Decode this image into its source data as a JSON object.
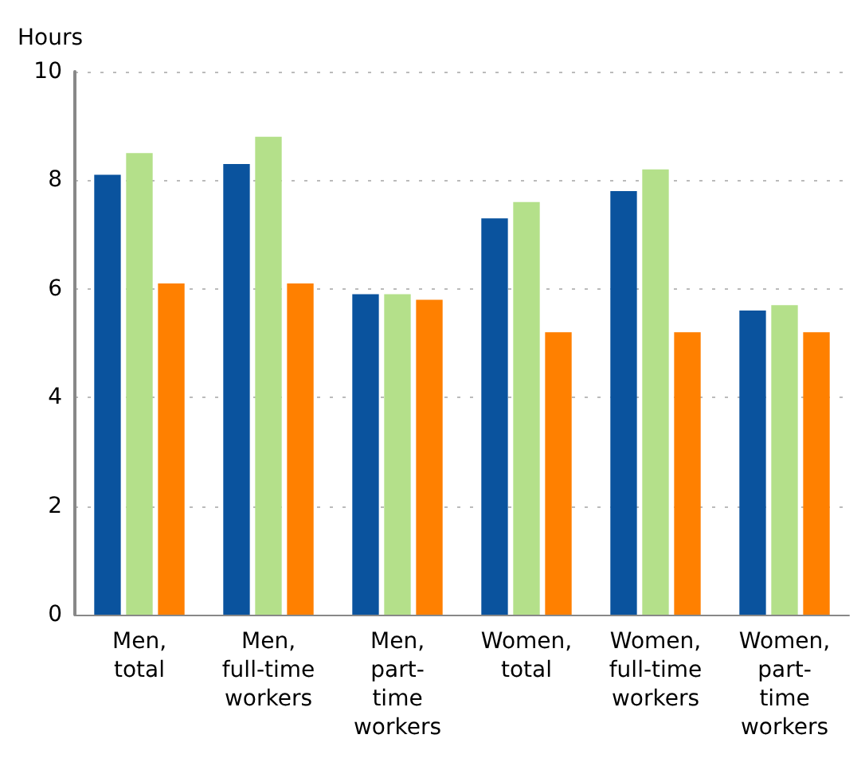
{
  "chart_data": {
    "type": "bar",
    "ylabel": "Hours",
    "categories": [
      "Men,\ntotal",
      "Men,\nfull-time\nworkers",
      "Men,\npart-\ntime\nworkers",
      "Women,\ntotal",
      "Women,\nfull-time\nworkers",
      "Women,\npart-\ntime\nworkers"
    ],
    "series": [
      {
        "color": "#0a539e",
        "values": [
          8.1,
          8.3,
          5.9,
          7.3,
          7.8,
          5.6
        ]
      },
      {
        "color": "#b4e08a",
        "values": [
          8.5,
          8.8,
          5.9,
          7.6,
          8.2,
          5.7
        ]
      },
      {
        "color": "#ff8000",
        "values": [
          6.1,
          6.1,
          5.8,
          5.2,
          5.2,
          5.2
        ]
      }
    ],
    "ylim": [
      0,
      10
    ],
    "yticks": [
      0,
      2,
      4,
      6,
      8,
      10
    ],
    "grid": "y"
  }
}
